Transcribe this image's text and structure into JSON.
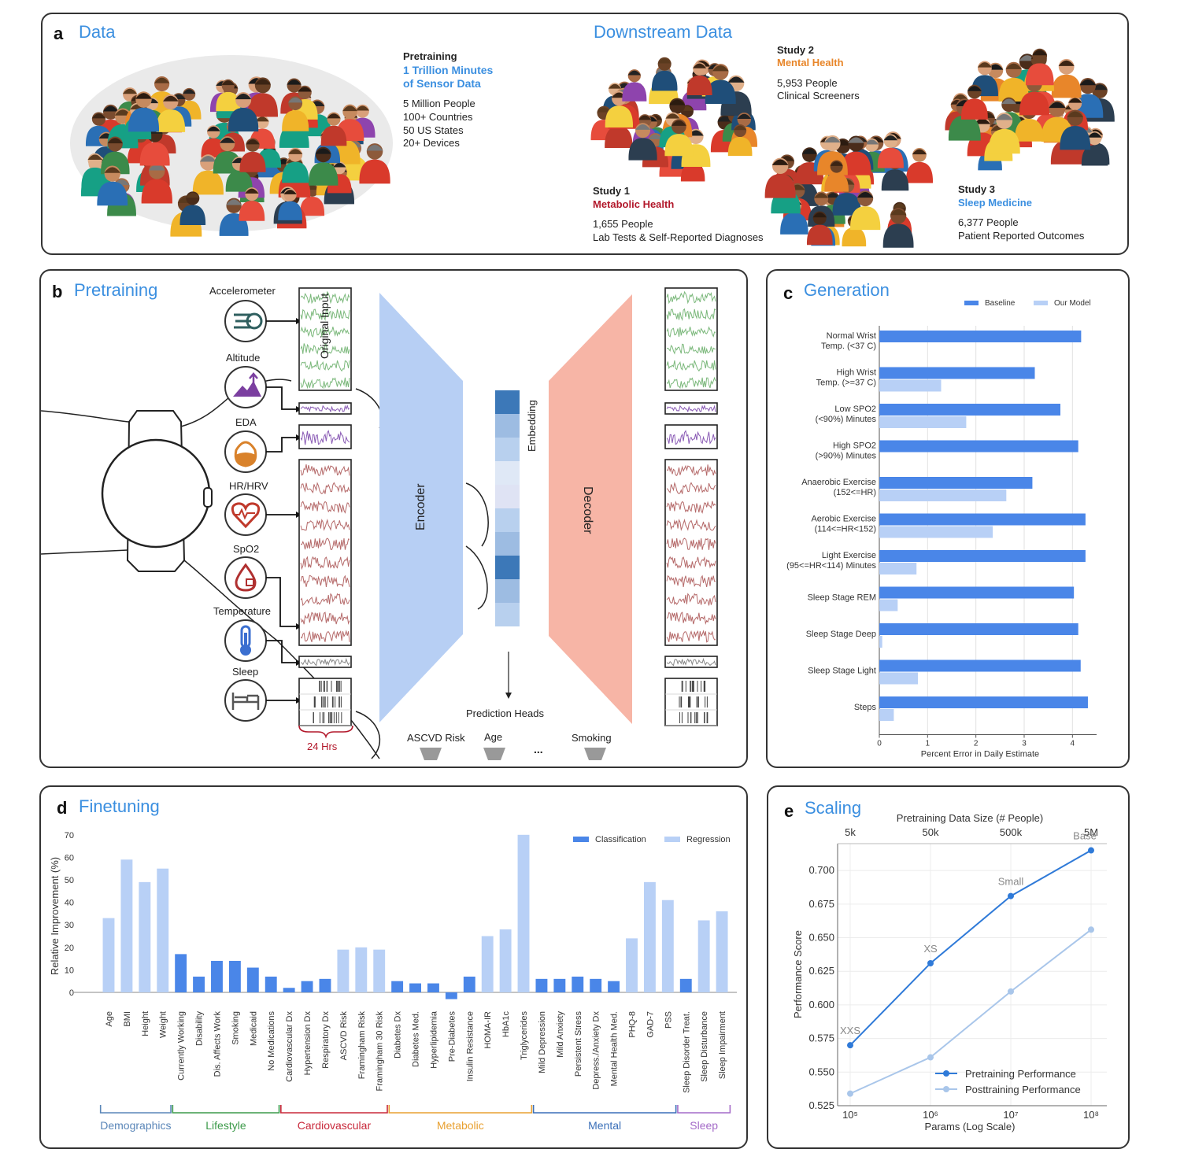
{
  "panel_a": {
    "letter": "a",
    "title": "Data",
    "pretraining": {
      "heading": "Pretraining",
      "highlight_line1": "1 Trillion Minutes",
      "highlight_line2": "of Sensor Data",
      "stats": [
        "5 Million People",
        "100+ Countries",
        "50 US States",
        "20+ Devices"
      ]
    },
    "downstream_title": "Downstream Data",
    "studies": [
      {
        "name": "Study 1",
        "topic": "Metabolic Health",
        "topic_color": "#b2182b",
        "line1": "1,655 People",
        "line2": "Lab Tests & Self-Reported Diagnoses"
      },
      {
        "name": "Study 2",
        "topic": "Mental Health",
        "topic_color": "#e8862a",
        "line1": "5,953 People",
        "line2": "Clinical Screeners"
      },
      {
        "name": "Study 3",
        "topic": "Sleep Medicine",
        "topic_color": "#3b8fe0",
        "line1": "6,377 People",
        "line2": "Patient Reported Outcomes"
      }
    ]
  },
  "panel_b": {
    "letter": "b",
    "title": "Pretraining",
    "sensors": [
      "Accelerometer",
      "Altitude",
      "EDA",
      "HR/HRV",
      "SpO2",
      "Temperature",
      "Sleep"
    ],
    "sensor_icons": [
      "accelerometer-icon",
      "altitude-icon",
      "eda-icon",
      "heart-icon",
      "spo2-icon",
      "thermometer-icon",
      "bed-icon"
    ],
    "original_input_label": "Original Input",
    "time_label": "24 Hrs",
    "encoder_label": "Encoder",
    "decoder_label": "Decoder",
    "embedding_label": "Embedding",
    "prediction_heads_label": "Prediction Heads",
    "heads": [
      "ASCVD Risk",
      "Age",
      "...",
      "Smoking"
    ],
    "colors": {
      "encoder": "#b7cff4",
      "decoder": "#f7b5a6",
      "signal_green": "#7bb87b",
      "signal_red": "#b56a6a",
      "signal_purple": "#8a5bb5"
    }
  },
  "panel_c": {
    "letter": "c",
    "title": "Generation",
    "chart_data": {
      "type": "bar",
      "orientation": "horizontal",
      "categories": [
        [
          "Normal Wrist",
          "Temp. (<37 C)"
        ],
        [
          "High Wrist",
          "Temp. (>=37 C)"
        ],
        [
          "Low SPO2",
          "(<90%) Minutes"
        ],
        [
          "High SPO2",
          "(>90%) Minutes"
        ],
        [
          "Anaerobic Exercise",
          "(152<=HR)"
        ],
        [
          "Aerobic Exercise",
          "(114<=HR<152)"
        ],
        [
          "Light Exercise",
          "(95<=HR<114) Minutes"
        ],
        [
          "Sleep Stage REM"
        ],
        [
          "Sleep Stage Deep"
        ],
        [
          "Sleep Stage Light"
        ],
        [
          "Steps"
        ]
      ],
      "series": [
        {
          "name": "Baseline",
          "color": "#4a86e8",
          "values": [
            4.18,
            3.22,
            3.75,
            4.12,
            3.17,
            4.27,
            4.27,
            4.03,
            4.12,
            4.17,
            4.32
          ]
        },
        {
          "name": "Our Model",
          "color": "#b8d0f6",
          "values": [
            0.0,
            1.28,
            1.8,
            0.0,
            2.63,
            2.35,
            0.77,
            0.38,
            0.06,
            0.8,
            0.3
          ]
        }
      ],
      "xlabel": "Percent Error in Daily Estimate",
      "xlim": [
        0,
        4.5
      ],
      "xticks": [
        0,
        1,
        2,
        3,
        4
      ],
      "grid": true,
      "legend": "top-right"
    }
  },
  "panel_d": {
    "letter": "d",
    "title": "Finetuning",
    "chart_data": {
      "type": "bar",
      "categories": [
        "Age",
        "BMI",
        "Height",
        "Weight",
        "Currently Working",
        "Disability",
        "Dis. Affects Work",
        "Smoking",
        "Medicaid",
        "No Medications",
        "Cardiovascular Dx",
        "Hypertension Dx",
        "Respiratory Dx",
        "ASCVD Risk",
        "Framingham Risk",
        "Framingham 30 Risk",
        "Diabetes Dx",
        "Diabetes Med.",
        "Hyperlipidemia",
        "Pre-Diabetes",
        "Insulin Resistance",
        "HOMA-IR",
        "HbA1c",
        "Triglycerides",
        "Mild Depression",
        "Mild Anxiety",
        "Persistent Stress",
        "Depress./Anxiety Dx",
        "Mental Health Med.",
        "PHQ-8",
        "GAD-7",
        "PSS",
        "Sleep Disorder Treat.",
        "Sleep Disturbance",
        "Sleep Impairment"
      ],
      "values": [
        33,
        59,
        49,
        55,
        17,
        7,
        14,
        14,
        11,
        7,
        2,
        5,
        6,
        19,
        20,
        19,
        5,
        4,
        4,
        -3,
        7,
        25,
        28,
        70,
        6,
        6,
        7,
        6,
        5,
        24,
        49,
        41,
        6,
        32,
        36
      ],
      "kind": [
        "Regression",
        "Regression",
        "Regression",
        "Regression",
        "Classification",
        "Classification",
        "Classification",
        "Classification",
        "Classification",
        "Classification",
        "Classification",
        "Classification",
        "Classification",
        "Regression",
        "Regression",
        "Regression",
        "Classification",
        "Classification",
        "Classification",
        "Classification",
        "Classification",
        "Regression",
        "Regression",
        "Regression",
        "Classification",
        "Classification",
        "Classification",
        "Classification",
        "Classification",
        "Regression",
        "Regression",
        "Regression",
        "Classification",
        "Regression",
        "Regression"
      ],
      "series": [
        {
          "name": "Classification",
          "color": "#4a86e8"
        },
        {
          "name": "Regression",
          "color": "#b8d0f6"
        }
      ],
      "ylabel": "Relative Improvement (%)",
      "ylim": [
        -5,
        70
      ],
      "yticks": [
        0,
        10,
        20,
        30,
        40,
        50,
        60,
        70
      ],
      "legend": "top-right",
      "groups": [
        {
          "label": "Demographics",
          "start": 0,
          "end": 3,
          "color": "#5a86b8"
        },
        {
          "label": "Lifestyle",
          "start": 4,
          "end": 9,
          "color": "#3c9a4a"
        },
        {
          "label": "Cardiovascular",
          "start": 10,
          "end": 15,
          "color": "#c8283a"
        },
        {
          "label": "Metabolic",
          "start": 16,
          "end": 23,
          "color": "#e8a030"
        },
        {
          "label": "Mental",
          "start": 24,
          "end": 31,
          "color": "#3a6fb8"
        },
        {
          "label": "Sleep",
          "start": 32,
          "end": 34,
          "color": "#a46bc8"
        }
      ]
    }
  },
  "panel_e": {
    "letter": "e",
    "title": "Scaling",
    "chart_data": {
      "type": "line",
      "x": [
        100000,
        1000000,
        10000000,
        100000000
      ],
      "x_tick_labels": [
        "10⁵",
        "10⁶",
        "10⁷",
        "10⁸"
      ],
      "top_axis_label": "Pretraining Data Size (# People)",
      "top_tick_labels": [
        "5k",
        "50k",
        "500k",
        "5M"
      ],
      "point_labels": [
        "XXS",
        "XS",
        "Small",
        "Base"
      ],
      "series": [
        {
          "name": "Pretraining Performance",
          "color": "#2f7ad8",
          "values": [
            0.57,
            0.631,
            0.681,
            0.715
          ]
        },
        {
          "name": "Posttraining Performance",
          "color": "#a9c6ea",
          "values": [
            0.534,
            0.561,
            0.61,
            0.656
          ]
        }
      ],
      "xlabel": "Params (Log Scale)",
      "ylabel": "Performance Score",
      "xscale": "log",
      "ylim": [
        0.525,
        0.72
      ],
      "yticks": [
        "0.525",
        "0.550",
        "0.575",
        "0.600",
        "0.625",
        "0.650",
        "0.675",
        "0.700"
      ],
      "grid": true,
      "legend": "bottom-right"
    }
  }
}
